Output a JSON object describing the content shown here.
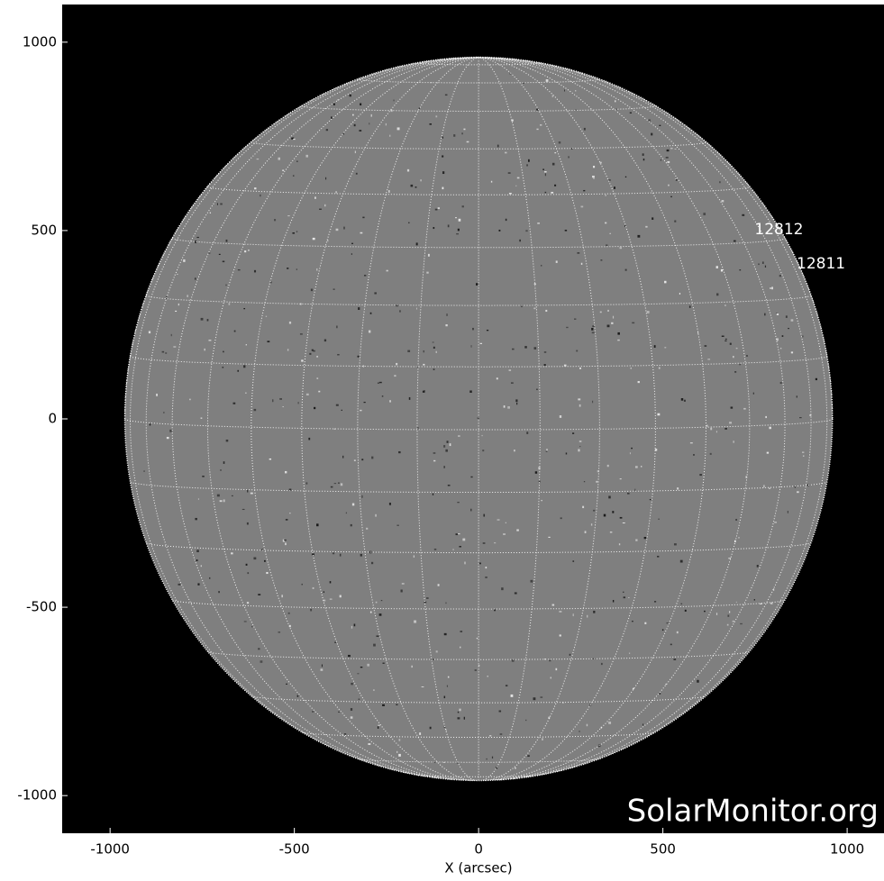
{
  "chart_data": {
    "type": "solar-disk",
    "xlabel": "X (arcsec)",
    "xlim": [
      -1130,
      1100
    ],
    "ylim": [
      -1100,
      1100
    ],
    "xticks": [
      -1000,
      -500,
      0,
      500,
      1000
    ],
    "yticks": [
      -1000,
      -500,
      0,
      500,
      1000
    ],
    "solar_radius": 960,
    "disk_color": "#7f7f7f",
    "grid_color": "#ffffff",
    "annotations": [
      {
        "text": "12812",
        "x": 815,
        "y": 502
      },
      {
        "text": "12811",
        "x": 929,
        "y": 411
      }
    ],
    "watermark": "SolarMonitor.org"
  }
}
